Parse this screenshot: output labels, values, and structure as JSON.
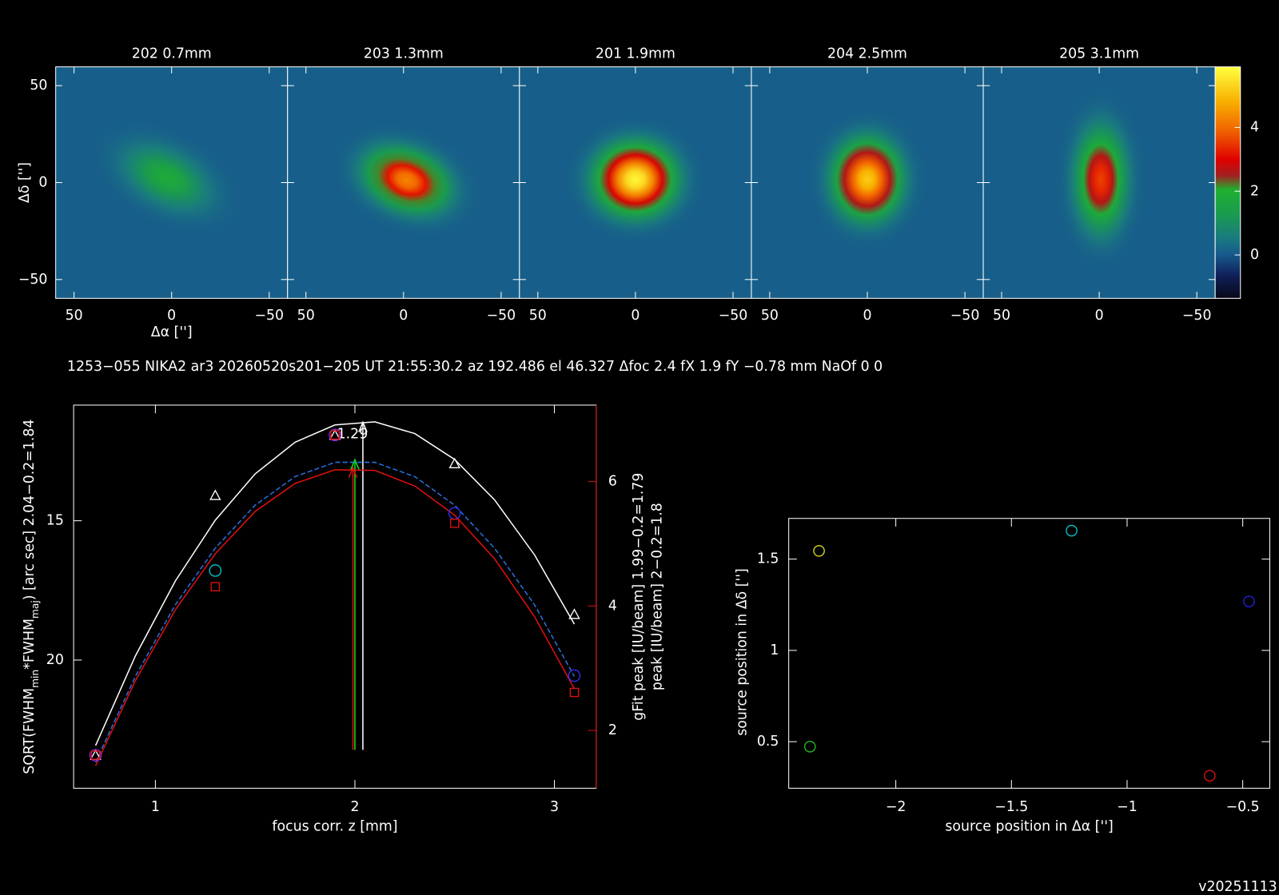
{
  "header": {
    "title": "1253−055 NIKA2 ar3 20260520s201−205 UT 21:55:30.2 az 192.486 el 46.327 Δfoc 2.4 fX 1.9 fY −0.78 mm NaOf 0 0",
    "version": "v20251113"
  },
  "chart_data": [
    {
      "type": "heatmap",
      "panels": [
        {
          "title": "202 0.7mm",
          "peak": 1.8
        },
        {
          "title": "203 1.3mm",
          "peak": 4.3
        },
        {
          "title": "201 1.9mm",
          "peak": 5.8
        },
        {
          "title": "204 2.5mm",
          "peak": 5.2
        },
        {
          "title": "205 3.1mm",
          "peak": 3.6
        }
      ],
      "background": 0.1,
      "xlabel": "Δα ['']",
      "ylabel": "Δδ ['']",
      "xlim": [
        59.4,
        -59.4
      ],
      "xticks": [
        50,
        0,
        {
          "value": -50,
          "label": "−50"
        }
      ],
      "ylim": [
        -59.7,
        59.7
      ],
      "yticks": [
        {
          "value": -50,
          "label": "−50"
        },
        0,
        50
      ],
      "colorbar": {
        "clim": [
          -1.36,
          5.9
        ],
        "ticks": [
          0,
          2,
          4
        ]
      }
    },
    {
      "type": "line",
      "xlabel": "focus corr. z [mm]",
      "ylabel_parts": [
        "SQRT(FWHM",
        "min",
        "*FWHM",
        "maj",
        ") [arc sec] 2.04−0.2=1.84"
      ],
      "y2labels": [
        {
          "text": "gFit peak [IU/beam] 1.99−0.2=1.79",
          "color": "#e01010"
        },
        {
          "text": "peak [IU/beam] 2−0.2=1.8",
          "color": "#10d010"
        }
      ],
      "annotations": [
        {
          "text": "1.29",
          "color": "#e01010"
        }
      ],
      "xlim": [
        0.59,
        3.21
      ],
      "xticks": [
        1,
        2,
        3
      ],
      "ylim": [
        24.6,
        10.85
      ],
      "yticks": [
        15,
        20
      ],
      "y2lim": [
        1.07,
        7.23
      ],
      "y2ticks": [
        2,
        4,
        6
      ],
      "arrows": [
        {
          "x": 2.04,
          "color": "#ffffff"
        },
        {
          "x": 2.0,
          "color": "#10e010"
        },
        {
          "x": 1.99,
          "color": "#e01010"
        }
      ],
      "series": [
        {
          "x": [
            0.7,
            0.9,
            1.1,
            1.3,
            1.5,
            1.7,
            1.9,
            2.1,
            2.3,
            2.5,
            2.7,
            2.9,
            3.1
          ],
          "values": [
            23.07,
            19.85,
            17.16,
            14.98,
            13.32,
            12.18,
            11.56,
            11.45,
            11.87,
            12.8,
            14.25,
            16.22,
            18.71
          ],
          "color": "#ffffff",
          "axis": "y"
        },
        {
          "x": [
            0.7,
            0.9,
            1.1,
            1.3,
            1.5,
            1.7,
            1.9,
            2.1,
            2.3,
            2.5,
            2.7,
            2.9,
            3.1
          ],
          "values": [
            1.43,
            2.8,
            3.94,
            4.84,
            5.52,
            5.97,
            6.19,
            6.18,
            5.93,
            5.46,
            4.76,
            3.83,
            2.67
          ],
          "color": "#e01010",
          "axis": "y2"
        },
        {
          "x": [
            0.7,
            0.9,
            1.1,
            1.3,
            1.5,
            1.7,
            1.9,
            2.1,
            2.3,
            2.5,
            2.7,
            2.9,
            3.1
          ],
          "values": [
            1.49,
            2.87,
            4.02,
            4.93,
            5.62,
            6.08,
            6.31,
            6.31,
            6.08,
            5.62,
            4.93,
            4.02,
            2.87
          ],
          "color": "#2a6fe0",
          "axis": "y2",
          "dash": true
        },
        {
          "x": [
            0.7,
            1.3,
            1.9,
            2.5,
            3.1
          ],
          "values": [
            23.42,
            14.09,
            11.93,
            12.95,
            18.36
          ],
          "color": "#ffffff",
          "marker": "triangle",
          "axis": "y"
        },
        {
          "x": [
            0.7,
            1.3,
            1.9,
            2.5,
            3.1
          ],
          "values": [
            1.6,
            4.57,
            6.75,
            5.49,
            2.88
          ],
          "colors": [
            "#9020e0",
            "#00c8d0",
            "#9020e0",
            "#3030ff",
            "#3030ff"
          ],
          "marker": "circle",
          "axis": "y2"
        },
        {
          "x": [
            0.7,
            1.3,
            1.9,
            2.5,
            3.1
          ],
          "values": [
            1.6,
            4.31,
            6.75,
            5.33,
            2.61
          ],
          "color": "#e01010",
          "marker": "square",
          "axis": "y2"
        }
      ]
    },
    {
      "type": "scatter",
      "xlabel": "source position in Δα ['']",
      "ylabel": "source position in Δδ ['']",
      "x": [
        -2.332,
        -1.24,
        -2.371,
        -0.473,
        -0.643
      ],
      "values": [
        1.545,
        1.656,
        0.473,
        1.268,
        0.313
      ],
      "colors": [
        "#e0e020",
        "#00c8d0",
        "#20c020",
        "#2020e0",
        "#e01010"
      ],
      "xlim": [
        -2.463,
        -0.383
      ],
      "xticks": [
        {
          "value": -2,
          "label": "−2"
        },
        {
          "value": -1.5,
          "label": "−1.5"
        },
        {
          "value": -1,
          "label": "−1"
        },
        {
          "value": -0.5,
          "label": "−0.5"
        }
      ],
      "ylim": [
        0.245,
        1.723
      ],
      "yticks": [
        0.5,
        1,
        1.5
      ]
    }
  ]
}
